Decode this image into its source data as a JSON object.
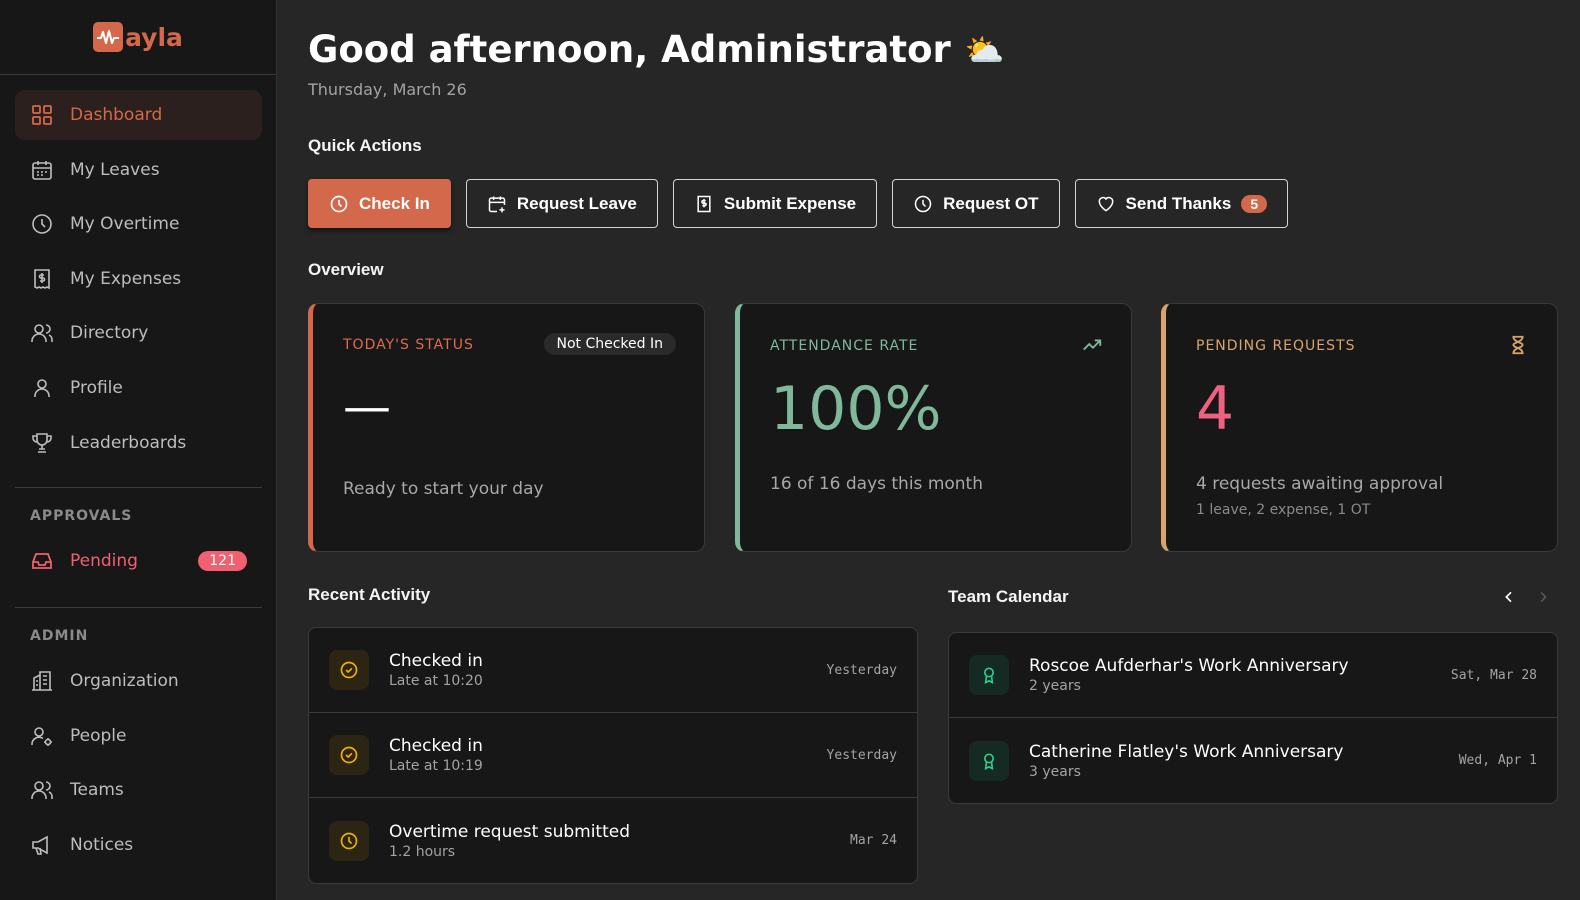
{
  "brand": {
    "name": "ayla",
    "accent": "#d4684a"
  },
  "sidebar": {
    "items": [
      {
        "label": "Dashboard",
        "icon": "grid-icon"
      },
      {
        "label": "My Leaves",
        "icon": "calendar-icon"
      },
      {
        "label": "My Overtime",
        "icon": "clock-icon"
      },
      {
        "label": "My Expenses",
        "icon": "receipt-icon"
      },
      {
        "label": "Directory",
        "icon": "users-icon"
      },
      {
        "label": "Profile",
        "icon": "user-icon"
      },
      {
        "label": "Leaderboards",
        "icon": "trophy-icon"
      }
    ],
    "approvals_title": "APPROVALS",
    "pending": {
      "label": "Pending",
      "count": "121"
    },
    "admin_title": "ADMIN",
    "admin_items": [
      {
        "label": "Organization",
        "icon": "building-icon"
      },
      {
        "label": "People",
        "icon": "user-cog-icon"
      },
      {
        "label": "Teams",
        "icon": "users-icon"
      },
      {
        "label": "Notices",
        "icon": "megaphone-icon"
      }
    ]
  },
  "header": {
    "greeting": "Good afternoon, Administrator",
    "weather_icon": "⛅",
    "date": "Thursday, March 26"
  },
  "quick_actions": {
    "title": "Quick Actions",
    "buttons": [
      "Check In",
      "Request Leave",
      "Submit Expense",
      "Request OT",
      "Send Thanks"
    ],
    "thanks_count": "5"
  },
  "overview": {
    "title": "Overview",
    "status": {
      "label": "TODAY'S STATUS",
      "badge": "Not Checked In",
      "value": "—",
      "sub": "Ready to start your day"
    },
    "attendance": {
      "label": "ATTENDANCE RATE",
      "value": "100%",
      "sub": "16 of 16 days this month"
    },
    "pending": {
      "label": "PENDING REQUESTS",
      "value": "4",
      "sub": "4 requests awaiting approval",
      "detail": "1 leave, 2 expense, 1 OT"
    }
  },
  "activity": {
    "title": "Recent Activity",
    "items": [
      {
        "title": "Checked in",
        "desc": "Late at 10:20",
        "when": "Yesterday"
      },
      {
        "title": "Checked in",
        "desc": "Late at 10:19",
        "when": "Yesterday"
      },
      {
        "title": "Overtime request submitted",
        "desc": "1.2 hours",
        "when": "Mar 24"
      }
    ]
  },
  "calendar": {
    "title": "Team Calendar",
    "items": [
      {
        "title": "Roscoe Aufderhar's Work Anniversary",
        "desc": "2 years",
        "when": "Sat, Mar 28"
      },
      {
        "title": "Catherine Flatley's Work Anniversary",
        "desc": "3 years",
        "when": "Wed, Apr 1"
      }
    ]
  }
}
